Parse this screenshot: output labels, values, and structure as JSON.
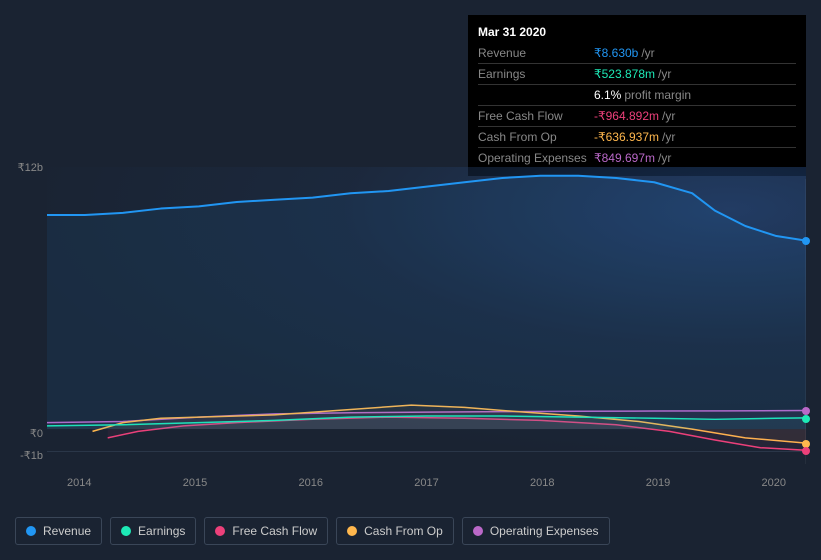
{
  "tooltip": {
    "date": "Mar 31 2020",
    "rows": [
      {
        "label": "Revenue",
        "value": "₹8.630b",
        "unit": "/yr",
        "color": "#2196f3"
      },
      {
        "label": "Earnings",
        "value": "₹523.878m",
        "unit": "/yr",
        "color": "#1de9b6"
      },
      {
        "label": "",
        "value": "6.1%",
        "unit": "profit margin",
        "color": "#ffffff"
      },
      {
        "label": "Free Cash Flow",
        "value": "-₹964.892m",
        "unit": "/yr",
        "color": "#ec407a"
      },
      {
        "label": "Cash From Op",
        "value": "-₹636.937m",
        "unit": "/yr",
        "color": "#ffb74d"
      },
      {
        "label": "Operating Expenses",
        "value": "₹849.697m",
        "unit": "/yr",
        "color": "#ba68c8"
      }
    ]
  },
  "chart": {
    "type": "line",
    "background_color": "#1a2332",
    "grid_color": "#2a3648",
    "text_color": "#888888",
    "y_labels": [
      {
        "text": "₹12b",
        "top_pct": 0
      },
      {
        "text": "₹0",
        "top_pct": 93.4
      },
      {
        "text": "-₹1b",
        "top_pct": 101.2
      }
    ],
    "x_labels": [
      "2014",
      "2015",
      "2016",
      "2017",
      "2018",
      "2019",
      "2020"
    ],
    "ylim": [
      -1,
      12
    ],
    "series": [
      {
        "name": "Revenue",
        "color": "#2196f3",
        "fill": "rgba(33,150,243,0.08)",
        "line_width": 2,
        "points": [
          [
            0,
            9.8
          ],
          [
            5,
            9.8
          ],
          [
            10,
            9.9
          ],
          [
            15,
            10.1
          ],
          [
            20,
            10.2
          ],
          [
            25,
            10.4
          ],
          [
            30,
            10.5
          ],
          [
            35,
            10.6
          ],
          [
            40,
            10.8
          ],
          [
            45,
            10.9
          ],
          [
            50,
            11.1
          ],
          [
            55,
            11.3
          ],
          [
            60,
            11.5
          ],
          [
            65,
            11.6
          ],
          [
            70,
            11.6
          ],
          [
            75,
            11.5
          ],
          [
            80,
            11.3
          ],
          [
            85,
            10.8
          ],
          [
            88,
            10.0
          ],
          [
            92,
            9.3
          ],
          [
            96,
            8.85
          ],
          [
            100,
            8.63
          ]
        ]
      },
      {
        "name": "Earnings",
        "color": "#1de9b6",
        "fill": "rgba(29,233,182,0.06)",
        "line_width": 1.5,
        "points": [
          [
            0,
            0.15
          ],
          [
            10,
            0.2
          ],
          [
            20,
            0.3
          ],
          [
            30,
            0.4
          ],
          [
            40,
            0.55
          ],
          [
            50,
            0.6
          ],
          [
            60,
            0.6
          ],
          [
            70,
            0.55
          ],
          [
            80,
            0.5
          ],
          [
            88,
            0.45
          ],
          [
            96,
            0.5
          ],
          [
            100,
            0.52
          ]
        ]
      },
      {
        "name": "Free Cash Flow",
        "color": "#ec407a",
        "fill": "rgba(236,64,122,0.06)",
        "line_width": 1.5,
        "points": [
          [
            8,
            -0.4
          ],
          [
            12,
            -0.1
          ],
          [
            18,
            0.15
          ],
          [
            25,
            0.3
          ],
          [
            35,
            0.45
          ],
          [
            45,
            0.55
          ],
          [
            55,
            0.5
          ],
          [
            65,
            0.4
          ],
          [
            75,
            0.2
          ],
          [
            82,
            -0.1
          ],
          [
            88,
            -0.5
          ],
          [
            94,
            -0.85
          ],
          [
            100,
            -0.97
          ]
        ]
      },
      {
        "name": "Cash From Op",
        "color": "#ffb74d",
        "fill": "rgba(255,183,77,0.06)",
        "line_width": 1.5,
        "points": [
          [
            6,
            -0.1
          ],
          [
            10,
            0.3
          ],
          [
            15,
            0.5
          ],
          [
            20,
            0.55
          ],
          [
            30,
            0.65
          ],
          [
            40,
            0.9
          ],
          [
            48,
            1.1
          ],
          [
            55,
            1.0
          ],
          [
            62,
            0.8
          ],
          [
            70,
            0.6
          ],
          [
            78,
            0.35
          ],
          [
            85,
            0.0
          ],
          [
            92,
            -0.4
          ],
          [
            100,
            -0.64
          ]
        ]
      },
      {
        "name": "Operating Expenses",
        "color": "#ba68c8",
        "fill": "rgba(186,104,200,0.06)",
        "line_width": 1.5,
        "points": [
          [
            0,
            0.3
          ],
          [
            10,
            0.35
          ],
          [
            20,
            0.55
          ],
          [
            30,
            0.7
          ],
          [
            40,
            0.75
          ],
          [
            50,
            0.78
          ],
          [
            60,
            0.8
          ],
          [
            70,
            0.82
          ],
          [
            80,
            0.83
          ],
          [
            90,
            0.84
          ],
          [
            100,
            0.85
          ]
        ]
      }
    ],
    "end_markers": [
      {
        "color": "#2196f3",
        "y": 8.63
      },
      {
        "color": "#ba68c8",
        "y": 0.85
      },
      {
        "color": "#1de9b6",
        "y": 0.52
      },
      {
        "color": "#ffb74d",
        "y": -0.64
      },
      {
        "color": "#ec407a",
        "y": -0.97
      }
    ]
  },
  "legend": [
    {
      "label": "Revenue",
      "color": "#2196f3"
    },
    {
      "label": "Earnings",
      "color": "#1de9b6"
    },
    {
      "label": "Free Cash Flow",
      "color": "#ec407a"
    },
    {
      "label": "Cash From Op",
      "color": "#ffb74d"
    },
    {
      "label": "Operating Expenses",
      "color": "#ba68c8"
    }
  ]
}
